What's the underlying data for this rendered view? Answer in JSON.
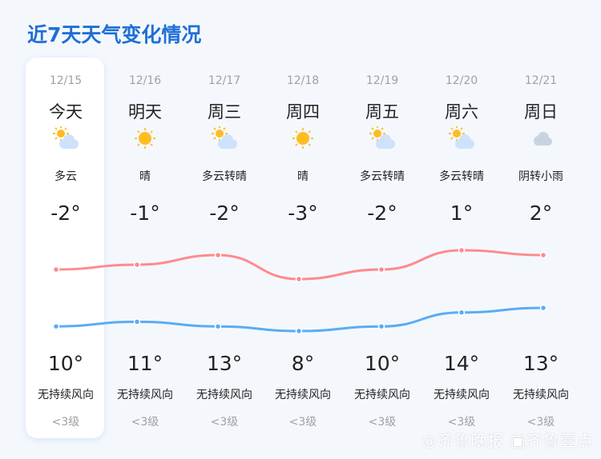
{
  "title": "近7天天气变化情况",
  "days": [
    {
      "date": "12/15",
      "day": "今天",
      "icon": "partly-cloudy-icon",
      "cond": "多云",
      "low": "-2°",
      "high": "10°",
      "wind": "无持续风向",
      "level": "<3级"
    },
    {
      "date": "12/16",
      "day": "明天",
      "icon": "sunny-icon",
      "cond": "晴",
      "low": "-1°",
      "high": "11°",
      "wind": "无持续风向",
      "level": "<3级"
    },
    {
      "date": "12/17",
      "day": "周三",
      "icon": "partly-cloudy-icon",
      "cond": "多云转晴",
      "low": "-2°",
      "high": "13°",
      "wind": "无持续风向",
      "level": "<3级"
    },
    {
      "date": "12/18",
      "day": "周四",
      "icon": "sunny-icon",
      "cond": "晴",
      "low": "-3°",
      "high": "8°",
      "wind": "无持续风向",
      "level": "<3级"
    },
    {
      "date": "12/19",
      "day": "周五",
      "icon": "partly-cloudy-icon",
      "cond": "多云转晴",
      "low": "-2°",
      "high": "10°",
      "wind": "无持续风向",
      "level": "<3级"
    },
    {
      "date": "12/20",
      "day": "周六",
      "icon": "partly-cloudy-icon",
      "cond": "多云转晴",
      "low": "1°",
      "high": "14°",
      "wind": "无持续风向",
      "level": "<3级"
    },
    {
      "date": "12/21",
      "day": "周日",
      "icon": "cloudy-icon",
      "cond": "阴转小雨",
      "low": "2°",
      "high": "13°",
      "wind": "无持续风向",
      "level": "<3级"
    }
  ],
  "chart_data": {
    "type": "line",
    "categories": [
      "12/15",
      "12/16",
      "12/17",
      "12/18",
      "12/19",
      "12/20",
      "12/21"
    ],
    "series": [
      {
        "values": [
          10,
          11,
          13,
          8,
          10,
          14,
          13
        ],
        "color": "#ff8a8e"
      },
      {
        "values": [
          -2,
          -1,
          -2,
          -3,
          -2,
          1,
          2
        ],
        "color": "#5aacf5"
      }
    ]
  },
  "watermark": "齐鲁晚报 齐鲁壹点",
  "colors": {
    "title": "#1f6fd6",
    "background": "#f4f8fd"
  }
}
